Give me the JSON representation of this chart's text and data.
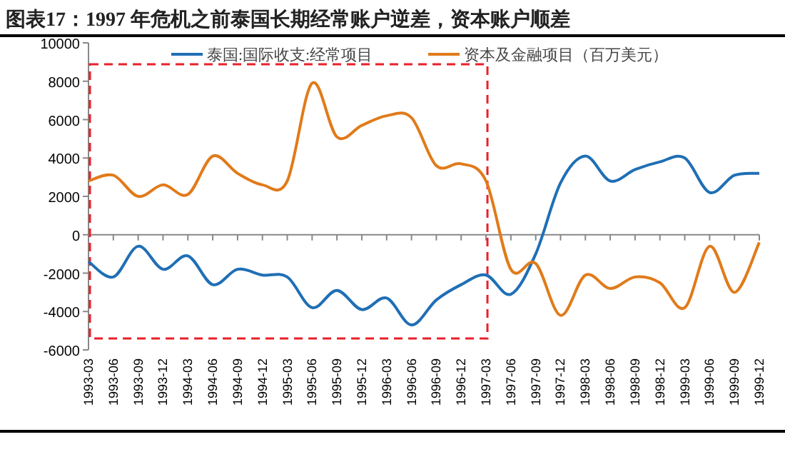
{
  "chart_data": {
    "type": "line",
    "title": "图表17：1997 年危机之前泰国长期经常账户逆差，资本账户顺差",
    "categories": [
      "1993-03",
      "1993-06",
      "1993-09",
      "1993-12",
      "1994-03",
      "1994-06",
      "1994-09",
      "1994-12",
      "1995-03",
      "1995-06",
      "1995-09",
      "1995-12",
      "1996-03",
      "1996-06",
      "1996-09",
      "1996-12",
      "1997-03",
      "1997-06",
      "1997-09",
      "1997-12",
      "1998-03",
      "1998-06",
      "1998-09",
      "1998-12",
      "1999-03",
      "1999-06",
      "1999-09",
      "1999-12"
    ],
    "series": [
      {
        "name": "泰国:国际收支:经常项目",
        "color": "#1f6fb5",
        "values": [
          -1400,
          -2200,
          -600,
          -1800,
          -1100,
          -2600,
          -1800,
          -2100,
          -2200,
          -3800,
          -2900,
          -3900,
          -3300,
          -4700,
          -3400,
          -2600,
          -2100,
          -3100,
          -1000,
          2700,
          4100,
          2800,
          3400,
          3800,
          4000,
          2200,
          3100,
          3200
        ]
      },
      {
        "name": "资本及金融项目（百万美元）",
        "color": "#e07b1a",
        "values": [
          2800,
          3100,
          2000,
          2600,
          2100,
          4100,
          3200,
          2600,
          2800,
          7900,
          5100,
          5700,
          6200,
          6100,
          3600,
          3700,
          2800,
          -1800,
          -1500,
          -4200,
          -2100,
          -2800,
          -2200,
          -2500,
          -3800,
          -600,
          -3000,
          -400
        ]
      }
    ],
    "ylim": [
      -6000,
      10000
    ],
    "yticks": [
      -6000,
      -4000,
      -2000,
      0,
      2000,
      4000,
      6000,
      8000,
      10000
    ],
    "legend": "top",
    "marker": "none",
    "line_style": "solid"
  }
}
